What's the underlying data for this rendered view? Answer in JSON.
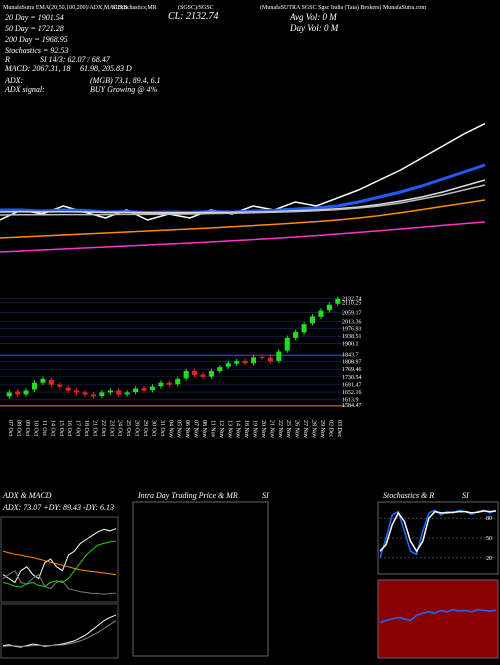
{
  "header": {
    "line1": "MunafaSutra EMA(20,50,100,200)/ADX,MACD,B",
    "line1b": "SI,Stochastics,MR",
    "line1c": "(SGSC)/SGSC",
    "close": "CL: 2132.74",
    "line1d": "(MunafaSUTRA SGSC Sgsc India (Tata) Brokers) MunafaSutra.com",
    "ema20": "20 Day = 1901.54",
    "ema50": "50 Day = 1721.28",
    "ema200": "200 Day = 1968.95",
    "avgvol": "Avg Vol: 0  M",
    "dayvol": "Day Vol: 0  M",
    "stoch": "Stochastics = 92.53",
    "rsi_label": "R",
    "rsi": "SI 14/3: 62.07 / 68.47",
    "macd_label": "MACD: 2067.31, 18",
    "macd": "61.98, 205.83 D",
    "adx_label": "ADX:",
    "adx": "(MGB) 73.1, 89.4, 6.1",
    "adxsig_label": "ADX signal:",
    "adxsig": "BUY Growing @ 4%"
  },
  "panels": {
    "adx_title": "ADX & MACD",
    "adx_values": "ADX: 73.07 +DY: 89.43 -DY: 6.13",
    "intraday_title": "Intra Day Trading Price & MR",
    "intraday_si": "SI",
    "stoch_title": "Stochastics & R",
    "stoch_si": "SI"
  },
  "chart_data": [
    {
      "type": "line",
      "ylim": [
        1400,
        2250
      ],
      "series": [
        {
          "color": "#ffffff",
          "values": [
            1650,
            1700,
            1680,
            1720,
            1690,
            1660,
            1700,
            1650,
            1680,
            1660,
            1700,
            1680,
            1720,
            1700,
            1740,
            1720,
            1760,
            1800,
            1850,
            1900,
            1960,
            2020,
            2080,
            2132
          ]
        },
        {
          "color": "#1e5cff",
          "values": [
            1700,
            1700,
            1695,
            1700,
            1698,
            1690,
            1692,
            1688,
            1690,
            1688,
            1692,
            1690,
            1695,
            1698,
            1705,
            1710,
            1720,
            1740,
            1765,
            1790,
            1820,
            1855,
            1890,
            1925
          ]
        },
        {
          "color": "#dddddd",
          "values": [
            1690,
            1692,
            1690,
            1692,
            1690,
            1688,
            1688,
            1686,
            1686,
            1686,
            1688,
            1688,
            1690,
            1692,
            1696,
            1700,
            1706,
            1715,
            1728,
            1745,
            1765,
            1790,
            1820,
            1850
          ]
        },
        {
          "color": "#bbbbbb",
          "values": [
            1675,
            1676,
            1676,
            1677,
            1677,
            1677,
            1678,
            1678,
            1679,
            1680,
            1682,
            1684,
            1686,
            1689,
            1692,
            1696,
            1702,
            1710,
            1720,
            1735,
            1755,
            1775,
            1800,
            1825
          ]
        },
        {
          "color": "#ff8c00",
          "values": [
            1560,
            1565,
            1570,
            1575,
            1580,
            1585,
            1590,
            1595,
            1600,
            1605,
            1610,
            1616,
            1622,
            1628,
            1635,
            1642,
            1650,
            1660,
            1672,
            1686,
            1702,
            1718,
            1734,
            1750
          ]
        },
        {
          "color": "#ff33cc",
          "values": [
            1490,
            1495,
            1500,
            1505,
            1510,
            1515,
            1520,
            1525,
            1530,
            1535,
            1540,
            1546,
            1552,
            1558,
            1565,
            1572,
            1580,
            1588,
            1596,
            1605,
            1614,
            1623,
            1632,
            1640
          ]
        }
      ]
    },
    {
      "type": "candlestick",
      "ylim": [
        1560,
        2150
      ],
      "yticks": [
        2132.74,
        2110.25,
        2059.17,
        2013.36,
        1976.93,
        1938.51,
        1900.1,
        1843.7,
        1808.97,
        1769.46,
        1730.54,
        1691.47,
        1652.16,
        1613.9,
        1584.47
      ],
      "categories": [
        "07 Oct",
        "08 Oct",
        "09 Oct",
        "10 Oct",
        "11 Oct",
        "14 Oct",
        "15 Oct",
        "16 Oct",
        "17 Oct",
        "18 Oct",
        "21 Oct",
        "22 Oct",
        "23 Oct",
        "24 Oct",
        "25 Oct",
        "28 Oct",
        "29 Oct",
        "30 Oct",
        "31 Oct",
        "04 Nov",
        "05 Nov",
        "06 Nov",
        "07 Nov",
        "08 Nov",
        "11 Nov",
        "12 Nov",
        "13 Nov",
        "14 Nov",
        "18 Nov",
        "19 Nov",
        "20 Nov",
        "21 Nov",
        "22 Nov",
        "25 Nov",
        "26 Nov",
        "27 Nov",
        "28 Nov",
        "29 Nov",
        "02 Dec",
        "03 Dec"
      ],
      "open": [
        1630,
        1655,
        1640,
        1665,
        1700,
        1715,
        1690,
        1675,
        1660,
        1650,
        1640,
        1632,
        1650,
        1660,
        1640,
        1652,
        1672,
        1662,
        1682,
        1700,
        1692,
        1722,
        1760,
        1742,
        1732,
        1760,
        1782,
        1798,
        1812,
        1800,
        1832,
        1828,
        1812,
        1865,
        1930,
        1958,
        2005,
        2038,
        2072,
        2105
      ],
      "high": [
        1662,
        1667,
        1672,
        1712,
        1732,
        1727,
        1702,
        1687,
        1672,
        1662,
        1652,
        1662,
        1672,
        1672,
        1662,
        1682,
        1684,
        1692,
        1712,
        1712,
        1732,
        1772,
        1772,
        1754,
        1772,
        1792,
        1812,
        1822,
        1824,
        1842,
        1844,
        1840,
        1872,
        1942,
        1972,
        2012,
        2052,
        2082,
        2112,
        2142
      ],
      "low": [
        1618,
        1628,
        1628,
        1653,
        1688,
        1678,
        1668,
        1648,
        1638,
        1628,
        1618,
        1620,
        1638,
        1628,
        1628,
        1640,
        1648,
        1650,
        1670,
        1678,
        1680,
        1710,
        1728,
        1718,
        1720,
        1748,
        1770,
        1786,
        1788,
        1788,
        1818,
        1798,
        1800,
        1853,
        1918,
        1946,
        1993,
        2026,
        2060,
        2093
      ],
      "close": [
        1650,
        1640,
        1660,
        1700,
        1720,
        1690,
        1680,
        1660,
        1650,
        1640,
        1630,
        1650,
        1660,
        1640,
        1650,
        1670,
        1660,
        1680,
        1700,
        1690,
        1720,
        1760,
        1740,
        1730,
        1760,
        1780,
        1800,
        1810,
        1800,
        1830,
        1830,
        1810,
        1860,
        1930,
        1960,
        2000,
        2040,
        2070,
        2100,
        2130
      ]
    },
    {
      "type": "line",
      "ylim": [
        0,
        100
      ],
      "series": [
        {
          "color": "#ffffff",
          "values": [
            30,
            25,
            20,
            35,
            40,
            30,
            25,
            45,
            50,
            40,
            35,
            55,
            60,
            70,
            75,
            80,
            85,
            88,
            86,
            89
          ]
        },
        {
          "color": "#777777",
          "values": [
            25,
            30,
            35,
            20,
            18,
            25,
            30,
            15,
            12,
            20,
            22,
            12,
            10,
            8,
            7,
            6,
            6,
            5,
            6,
            6
          ]
        },
        {
          "color": "#22cc22",
          "values": [
            20,
            18,
            15,
            14,
            18,
            20,
            16,
            15,
            20,
            22,
            20,
            25,
            35,
            45,
            55,
            62,
            68,
            70,
            72,
            73
          ]
        },
        {
          "color": "#ff8c00",
          "values": [
            60,
            58,
            56,
            55,
            53,
            52,
            50,
            48,
            46,
            44,
            42,
            40,
            38,
            36,
            35,
            34,
            33,
            32,
            31,
            30
          ]
        }
      ]
    },
    {
      "type": "line",
      "ylim": [
        -50,
        250
      ],
      "series": [
        {
          "color": "#ffffff",
          "values": [
            10,
            15,
            5,
            0,
            10,
            20,
            15,
            5,
            10,
            15,
            20,
            30,
            40,
            60,
            80,
            110,
            140,
            170,
            190,
            205
          ]
        },
        {
          "color": "#888888",
          "values": [
            5,
            8,
            8,
            5,
            6,
            10,
            12,
            10,
            10,
            12,
            15,
            20,
            28,
            40,
            55,
            75,
            95,
            120,
            145,
            170
          ]
        }
      ]
    },
    {
      "type": "empty"
    },
    {
      "type": "line",
      "ylim": [
        0,
        100
      ],
      "yticks": [
        80,
        50,
        20
      ],
      "series": [
        {
          "color": "#1e6cff",
          "values": [
            20,
            50,
            85,
            90,
            60,
            30,
            25,
            60,
            88,
            92,
            85,
            90,
            88,
            92,
            90,
            86,
            90,
            92,
            88,
            92
          ]
        },
        {
          "color": "#ffffff",
          "values": [
            30,
            40,
            70,
            88,
            75,
            45,
            30,
            45,
            80,
            90,
            88,
            88,
            89,
            90,
            90,
            88,
            89,
            91,
            90,
            91
          ]
        }
      ]
    },
    {
      "type": "line",
      "ylim": [
        0,
        100
      ],
      "series": [
        {
          "color": "#1e6cff",
          "values": [
            45,
            48,
            50,
            52,
            50,
            48,
            55,
            58,
            60,
            58,
            62,
            60,
            63,
            61,
            62,
            60,
            63,
            62,
            61,
            62
          ]
        }
      ]
    }
  ]
}
